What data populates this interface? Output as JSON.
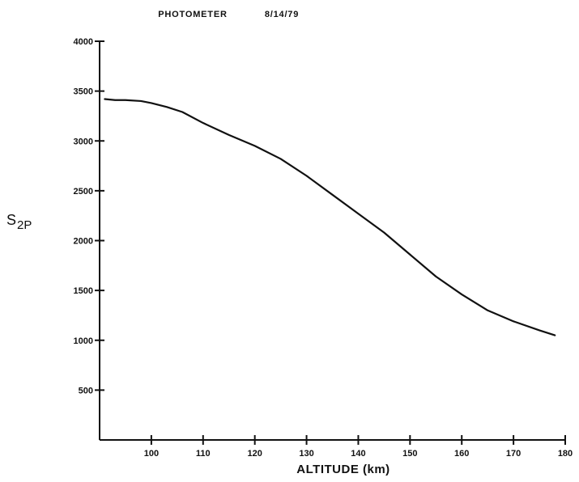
{
  "chart_data": {
    "type": "line",
    "title": "PHOTOMETER",
    "date": "8/14/79",
    "xlabel": "ALTITUDE (km)",
    "ylabel": {
      "main": "S",
      "sub": "2P"
    },
    "xlim": [
      90,
      180
    ],
    "ylim": [
      0,
      4000
    ],
    "x_ticks": [
      100,
      110,
      120,
      130,
      140,
      150,
      160,
      170,
      180
    ],
    "x_tick_labels": [
      "100",
      "110",
      "120",
      "130",
      "140",
      "150",
      "160",
      "170",
      "180"
    ],
    "y_ticks": [
      500,
      1000,
      1500,
      2000,
      2500,
      3000,
      3500,
      4000
    ],
    "y_tick_labels": [
      "500",
      "1000",
      "1500",
      "2000",
      "2500",
      "3000",
      "3500",
      "4000"
    ],
    "series": [
      {
        "x": [
          91,
          93,
          95,
          98,
          100,
          103,
          106,
          110,
          115,
          120,
          125,
          130,
          135,
          140,
          145,
          150,
          155,
          160,
          165,
          170,
          175,
          178
        ],
        "y": [
          3420,
          3410,
          3410,
          3400,
          3380,
          3340,
          3290,
          3180,
          3060,
          2950,
          2820,
          2650,
          2460,
          2270,
          2080,
          1860,
          1640,
          1460,
          1300,
          1190,
          1100,
          1050
        ]
      }
    ],
    "grid": false,
    "color": "#111111"
  }
}
